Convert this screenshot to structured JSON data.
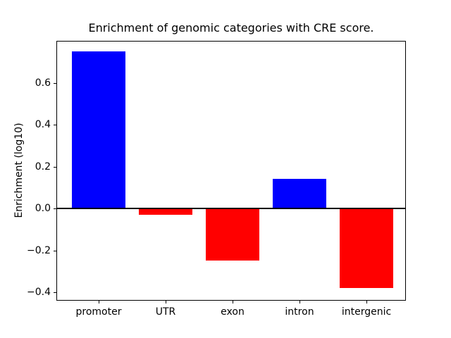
{
  "figure": {
    "title": "Enrichment of genomic categories with CRE score.",
    "ylabel": "Enrichment (log10)"
  },
  "chart_data": {
    "type": "bar",
    "title": "Enrichment of genomic categories with CRE score.",
    "xlabel": "",
    "ylabel": "Enrichment (log10)",
    "categories": [
      "promoter",
      "UTR",
      "exon",
      "intron",
      "intergenic"
    ],
    "values": [
      0.75,
      -0.03,
      -0.25,
      0.14,
      -0.38
    ],
    "bar_colors": [
      "#0000ff",
      "#ff0000",
      "#ff0000",
      "#0000ff",
      "#ff0000"
    ],
    "positive_color": "#0000ff",
    "negative_color": "#ff0000",
    "ylim": [
      -0.44,
      0.8
    ],
    "yticks": [
      0.6,
      0.4,
      0.2,
      0.0,
      -0.2,
      -0.4
    ],
    "ytick_labels": [
      "0.6",
      "0.4",
      "0.2",
      "0.0",
      "−0.2",
      "−0.4"
    ],
    "grid": false,
    "legend": "none",
    "zero_line": true,
    "zero_line_color": "#000000"
  }
}
